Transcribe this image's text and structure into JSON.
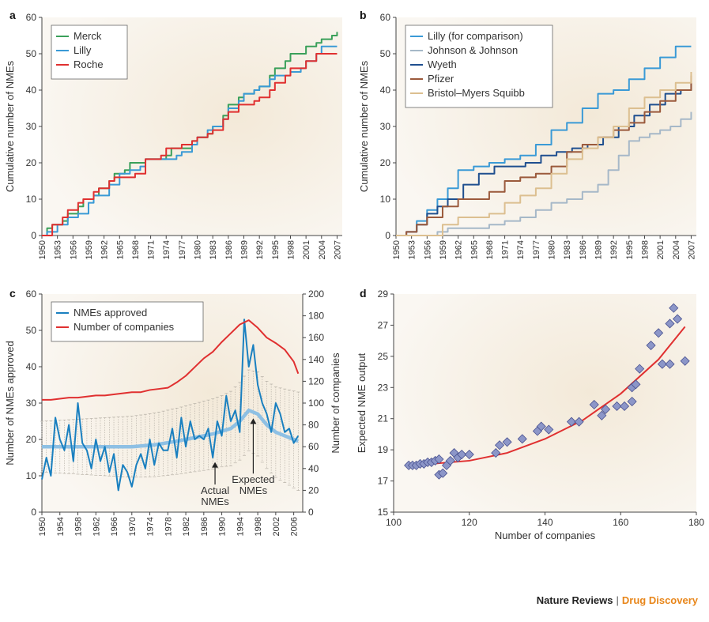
{
  "footer": {
    "publisher": "Nature Reviews",
    "separator": "|",
    "journal": "Drug Discovery"
  },
  "colors": {
    "merck": "#3aa05a",
    "lilly": "#3a9ad6",
    "roche": "#e03030",
    "jnj": "#a6b8c8",
    "wyeth": "#1f4f8f",
    "pfizer": "#9b5a3c",
    "bms": "#dcbf90",
    "nmes": "#1a80c0",
    "companies": "#e03030",
    "expected": "#8ec0e4",
    "fit": "#e03030",
    "marker": "#8c96c8",
    "bg": "#f5efe4",
    "text": "#333333"
  },
  "chart_data": [
    {
      "panel": "a",
      "type": "line",
      "ylabel": "Cumulative number of NMEs",
      "xlabel": "",
      "xlim": [
        1950,
        2008
      ],
      "ylim": [
        0,
        60
      ],
      "xticks": [
        "1950",
        "1953",
        "1956",
        "1959",
        "1962",
        "1965",
        "1968",
        "1971",
        "1974",
        "1977",
        "1980",
        "1983",
        "1986",
        "1989",
        "1992",
        "1995",
        "1998",
        "2001",
        "2004",
        "2007"
      ],
      "yticks": [
        "0",
        "10",
        "20",
        "30",
        "40",
        "50",
        "60"
      ],
      "legend_position": "top-left",
      "series": [
        {
          "name": "Merck",
          "color_key": "merck",
          "x": [
            1950,
            1951,
            1952,
            1954,
            1955,
            1957,
            1958,
            1960,
            1961,
            1963,
            1964,
            1966,
            1967,
            1969,
            1970,
            1972,
            1974,
            1975,
            1977,
            1979,
            1980,
            1982,
            1983,
            1985,
            1986,
            1988,
            1989,
            1991,
            1992,
            1994,
            1995,
            1997,
            1998,
            2000,
            2001,
            2003,
            2004,
            2006,
            2007
          ],
          "y": [
            0,
            2,
            3,
            4,
            6,
            8,
            10,
            11,
            13,
            15,
            17,
            18,
            20,
            20,
            21,
            21,
            22,
            24,
            24,
            26,
            27,
            28,
            30,
            33,
            36,
            38,
            39,
            40,
            41,
            44,
            46,
            48,
            50,
            50,
            52,
            53,
            54,
            55,
            56
          ]
        },
        {
          "name": "Lilly",
          "color_key": "lilly",
          "x": [
            1950,
            1951,
            1953,
            1955,
            1957,
            1959,
            1960,
            1962,
            1963,
            1965,
            1967,
            1969,
            1970,
            1972,
            1974,
            1976,
            1977,
            1979,
            1980,
            1982,
            1983,
            1985,
            1986,
            1988,
            1989,
            1991,
            1992,
            1994,
            1995,
            1997,
            1998,
            2000,
            2001,
            2003,
            2004,
            2007
          ],
          "y": [
            0,
            1,
            3,
            5,
            6,
            9,
            11,
            11,
            14,
            17,
            18,
            19,
            21,
            21,
            21,
            22,
            23,
            25,
            27,
            29,
            30,
            32,
            35,
            37,
            39,
            40,
            41,
            43,
            44,
            44,
            45,
            46,
            48,
            50,
            52,
            52
          ]
        },
        {
          "name": "Roche",
          "color_key": "roche",
          "x": [
            1950,
            1952,
            1954,
            1955,
            1957,
            1958,
            1960,
            1961,
            1963,
            1964,
            1966,
            1968,
            1970,
            1971,
            1973,
            1974,
            1976,
            1977,
            1979,
            1980,
            1982,
            1983,
            1985,
            1986,
            1988,
            1989,
            1991,
            1992,
            1994,
            1995,
            1997,
            1998,
            2000,
            2001,
            2003,
            2004,
            2006,
            2007
          ],
          "y": [
            0,
            3,
            5,
            7,
            9,
            10,
            12,
            13,
            15,
            16,
            16,
            17,
            21,
            21,
            22,
            24,
            24,
            25,
            26,
            27,
            28,
            29,
            32,
            34,
            36,
            36,
            37,
            38,
            40,
            42,
            44,
            46,
            46,
            48,
            50,
            50,
            50,
            50
          ]
        }
      ]
    },
    {
      "panel": "b",
      "type": "line",
      "ylabel": "Cumulative number of NMEs",
      "xlabel": "",
      "xlim": [
        1950,
        2008
      ],
      "ylim": [
        0,
        60
      ],
      "xticks": [
        "1950",
        "1953",
        "1956",
        "1959",
        "1962",
        "1965",
        "1968",
        "1971",
        "1974",
        "1977",
        "1980",
        "1983",
        "1986",
        "1989",
        "1992",
        "1995",
        "1998",
        "2001",
        "2004",
        "2007"
      ],
      "yticks": [
        "0",
        "10",
        "20",
        "30",
        "40",
        "50",
        "60"
      ],
      "legend_position": "top-left",
      "series": [
        {
          "name": "Lilly (for comparison)",
          "color_key": "lilly",
          "x": [
            1950,
            1952,
            1954,
            1956,
            1958,
            1960,
            1962,
            1965,
            1968,
            1971,
            1974,
            1977,
            1980,
            1983,
            1986,
            1989,
            1992,
            1995,
            1998,
            2001,
            2004,
            2007
          ],
          "y": [
            0,
            1,
            4,
            7,
            10,
            13,
            18,
            19,
            20,
            21,
            22,
            25,
            29,
            31,
            35,
            39,
            40,
            43,
            46,
            49,
            52,
            52
          ]
        },
        {
          "name": "Johnson & Johnson",
          "color_key": "jnj",
          "x": [
            1950,
            1956,
            1958,
            1960,
            1965,
            1968,
            1971,
            1974,
            1977,
            1980,
            1983,
            1986,
            1989,
            1991,
            1993,
            1995,
            1997,
            1999,
            2001,
            2003,
            2005,
            2007
          ],
          "y": [
            0,
            0,
            1,
            2,
            2,
            3,
            4,
            5,
            7,
            9,
            10,
            12,
            14,
            18,
            22,
            26,
            27,
            28,
            29,
            30,
            32,
            34
          ]
        },
        {
          "name": "Wyeth",
          "color_key": "wyeth",
          "x": [
            1950,
            1952,
            1954,
            1956,
            1958,
            1960,
            1963,
            1966,
            1969,
            1972,
            1975,
            1978,
            1981,
            1984,
            1987,
            1990,
            1993,
            1996,
            1999,
            2002,
            2005,
            2007
          ],
          "y": [
            0,
            1,
            3,
            6,
            8,
            10,
            14,
            17,
            19,
            19,
            20,
            22,
            23,
            24,
            25,
            27,
            30,
            33,
            36,
            39,
            40,
            42
          ]
        },
        {
          "name": "Pfizer",
          "color_key": "pfizer",
          "x": [
            1950,
            1952,
            1954,
            1956,
            1959,
            1962,
            1965,
            1968,
            1971,
            1974,
            1977,
            1980,
            1983,
            1986,
            1989,
            1992,
            1995,
            1998,
            2001,
            2004,
            2007
          ],
          "y": [
            0,
            1,
            3,
            5,
            8,
            10,
            10,
            12,
            15,
            16,
            17,
            19,
            23,
            25,
            27,
            29,
            31,
            34,
            37,
            40,
            44
          ]
        },
        {
          "name": "Bristol–Myers Squibb",
          "color_key": "bms",
          "x": [
            1950,
            1957,
            1959,
            1962,
            1965,
            1968,
            1971,
            1974,
            1977,
            1980,
            1983,
            1986,
            1989,
            1992,
            1995,
            1998,
            2001,
            2004,
            2007
          ],
          "y": [
            0,
            0,
            3,
            5,
            5,
            6,
            9,
            11,
            13,
            17,
            21,
            24,
            27,
            30,
            35,
            38,
            40,
            42,
            45
          ]
        }
      ]
    },
    {
      "panel": "c",
      "type": "line",
      "ylabel": "Number of NMEs approved",
      "y2label": "Number of companies",
      "xlabel": "",
      "xlim": [
        1950,
        2008
      ],
      "ylim": [
        0,
        60
      ],
      "y2lim": [
        0,
        200
      ],
      "xticks": [
        "1950",
        "1954",
        "1958",
        "1962",
        "1966",
        "1970",
        "1974",
        "1978",
        "1982",
        "1986",
        "1990",
        "1994",
        "1998",
        "2002",
        "2006"
      ],
      "yticks": [
        "0",
        "10",
        "20",
        "30",
        "40",
        "50",
        "60"
      ],
      "y2ticks": [
        "0",
        "20",
        "40",
        "60",
        "80",
        "100",
        "120",
        "140",
        "160",
        "180",
        "200"
      ],
      "legend_position": "top-left",
      "annotations": [
        {
          "text": "Actual",
          "text2": "NMEs",
          "x": 1988.5,
          "y": 14
        },
        {
          "text": "Expected",
          "text2": "NMEs",
          "x": 1997,
          "y": 26
        }
      ],
      "series": [
        {
          "name": "NMEs approved",
          "axis": "left",
          "color_key": "nmes",
          "x": [
            1950,
            1951,
            1952,
            1953,
            1954,
            1955,
            1956,
            1957,
            1958,
            1959,
            1960,
            1961,
            1962,
            1963,
            1964,
            1965,
            1966,
            1967,
            1968,
            1969,
            1970,
            1971,
            1972,
            1973,
            1974,
            1975,
            1976,
            1977,
            1978,
            1979,
            1980,
            1981,
            1982,
            1983,
            1984,
            1985,
            1986,
            1987,
            1988,
            1989,
            1990,
            1991,
            1992,
            1993,
            1994,
            1995,
            1996,
            1997,
            1998,
            1999,
            2000,
            2001,
            2002,
            2003,
            2004,
            2005,
            2006,
            2007
          ],
          "y": [
            9,
            15,
            10,
            26,
            20,
            17,
            24,
            14,
            30,
            19,
            17,
            12,
            20,
            14,
            18,
            11,
            16,
            6,
            13,
            11,
            7,
            13,
            16,
            12,
            20,
            13,
            19,
            17,
            17,
            23,
            15,
            26,
            18,
            25,
            20,
            21,
            20,
            23,
            15,
            25,
            21,
            32,
            25,
            28,
            22,
            53,
            40,
            46,
            35,
            30,
            27,
            22,
            30,
            27,
            22,
            23,
            19,
            21
          ]
        },
        {
          "name": "Number of companies",
          "axis": "right",
          "color_key": "companies",
          "x": [
            1950,
            1952,
            1954,
            1956,
            1958,
            1960,
            1962,
            1964,
            1966,
            1968,
            1970,
            1972,
            1974,
            1976,
            1978,
            1980,
            1982,
            1984,
            1986,
            1988,
            1990,
            1992,
            1994,
            1996,
            1998,
            2000,
            2002,
            2004,
            2006,
            2007
          ],
          "y": [
            103,
            103,
            104,
            105,
            105,
            106,
            107,
            107,
            108,
            109,
            110,
            110,
            112,
            113,
            114,
            119,
            125,
            133,
            141,
            147,
            156,
            164,
            172,
            176,
            169,
            160,
            155,
            149,
            138,
            127
          ]
        },
        {
          "name": "Expected NMEs",
          "axis": "left",
          "color_key": "expected",
          "x": [
            1950,
            1955,
            1960,
            1965,
            1970,
            1975,
            1980,
            1984,
            1988,
            1992,
            1994,
            1996,
            1998,
            2000,
            2002,
            2004,
            2006,
            2007
          ],
          "y": [
            18,
            18,
            18,
            18,
            18,
            18.5,
            19.5,
            20.5,
            21.5,
            23,
            25,
            28,
            27,
            24,
            22,
            21,
            20,
            19.5
          ]
        }
      ]
    },
    {
      "panel": "d",
      "type": "scatter",
      "ylabel": "Expected NME output",
      "xlabel": "Number of companies",
      "xlim": [
        100,
        180
      ],
      "ylim": [
        15,
        29
      ],
      "xticks": [
        "100",
        "120",
        "140",
        "160",
        "180"
      ],
      "yticks": [
        "15",
        "17",
        "19",
        "21",
        "23",
        "25",
        "27",
        "29"
      ],
      "points": {
        "x": [
          104,
          105,
          106,
          107,
          108,
          109,
          110,
          111,
          112,
          112,
          113,
          114,
          115,
          116,
          117,
          118,
          120,
          127,
          128,
          130,
          134,
          138,
          139,
          141,
          147,
          149,
          153,
          155,
          156,
          159,
          161,
          163,
          163,
          164,
          165,
          168,
          170,
          171,
          173,
          173,
          174,
          175,
          177
        ],
        "y": [
          18,
          18,
          18,
          18.1,
          18.1,
          18.2,
          18.2,
          18.3,
          18.4,
          17.4,
          17.5,
          18,
          18.3,
          18.8,
          18.5,
          18.7,
          18.7,
          18.8,
          19.3,
          19.5,
          19.7,
          20.2,
          20.5,
          20.3,
          20.8,
          20.8,
          21.9,
          21.2,
          21.6,
          21.8,
          21.8,
          22.1,
          23,
          23.2,
          24.2,
          25.7,
          26.5,
          24.5,
          27.1,
          24.5,
          28.1,
          27.4,
          24.7
        ]
      },
      "fit": {
        "x": [
          104,
          110,
          120,
          130,
          140,
          150,
          160,
          170,
          177
        ],
        "y": [
          18.1,
          18.1,
          18.3,
          18.8,
          19.7,
          20.9,
          22.6,
          24.8,
          26.9
        ]
      }
    }
  ]
}
